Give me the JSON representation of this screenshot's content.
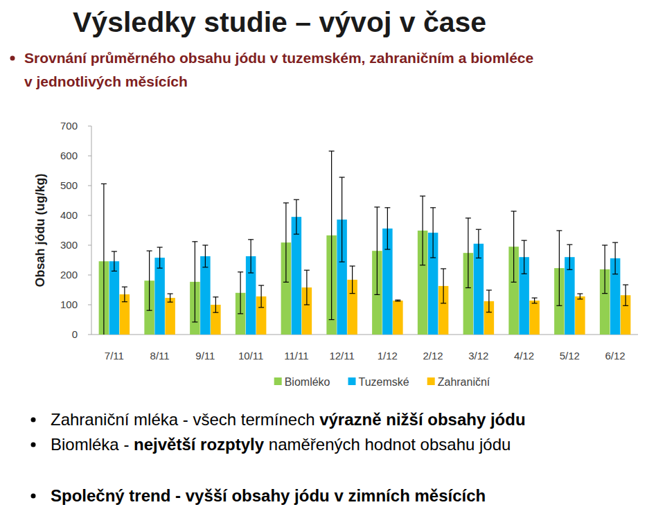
{
  "header": {
    "title": "Výsledky studie – vývoj v čase",
    "subtitle": [
      "Srovnání průměrného obsahu jódu v tuzemském, zahraničním a biomléce",
      "v jednotlivých měsících"
    ]
  },
  "chart_data": {
    "type": "bar",
    "y_label": "Obsah jódu (ug/kg)",
    "categories": [
      "7/11",
      "8/11",
      "9/11",
      "10/11",
      "11/11",
      "12/11",
      "1/12",
      "2/12",
      "3/12",
      "4/12",
      "5/12",
      "6/12"
    ],
    "series": [
      {
        "name": "Biomléko",
        "color": "#92D050",
        "values": [
          246,
          181,
          177,
          140,
          309,
          333,
          281,
          349,
          274,
          295,
          223,
          219
        ],
        "errors": [
          260,
          100,
          135,
          70,
          133,
          283,
          147,
          116,
          117,
          119,
          126,
          81
        ]
      },
      {
        "name": "Tuzemské",
        "color": "#00B0F0",
        "values": [
          246,
          258,
          263,
          263,
          395,
          386,
          356,
          342,
          305,
          260,
          260,
          256
        ],
        "errors": [
          33,
          35,
          37,
          56,
          58,
          142,
          70,
          84,
          48,
          56,
          42,
          53
        ]
      },
      {
        "name": "Zahraniční",
        "color": "#FFC000",
        "values": [
          135,
          123,
          100,
          128,
          158,
          184,
          114,
          163,
          112,
          114,
          128,
          132
        ],
        "errors": [
          25,
          14,
          26,
          37,
          58,
          46,
          2,
          58,
          37,
          9,
          9,
          35
        ]
      }
    ],
    "ylim": [
      0,
      700
    ],
    "yticks": [
      0,
      100,
      200,
      300,
      400,
      500,
      600,
      700
    ],
    "grid": false,
    "legend": "bottom"
  },
  "notes": [
    [
      {
        "text": "Zahraniční mléka - všech termínech ",
        "bold": false
      },
      {
        "text": "výrazně nižší obsahy jódu",
        "bold": true
      }
    ],
    [
      {
        "text": "Biomléka - ",
        "bold": false
      },
      {
        "text": "největší rozptyly",
        "bold": true
      },
      {
        "text": " naměřených hodnot obsahu jódu",
        "bold": false
      }
    ],
    [
      {
        "text": "Společný trend - vyšší obsahy jódu v zimních měsících",
        "bold": true
      }
    ]
  ]
}
